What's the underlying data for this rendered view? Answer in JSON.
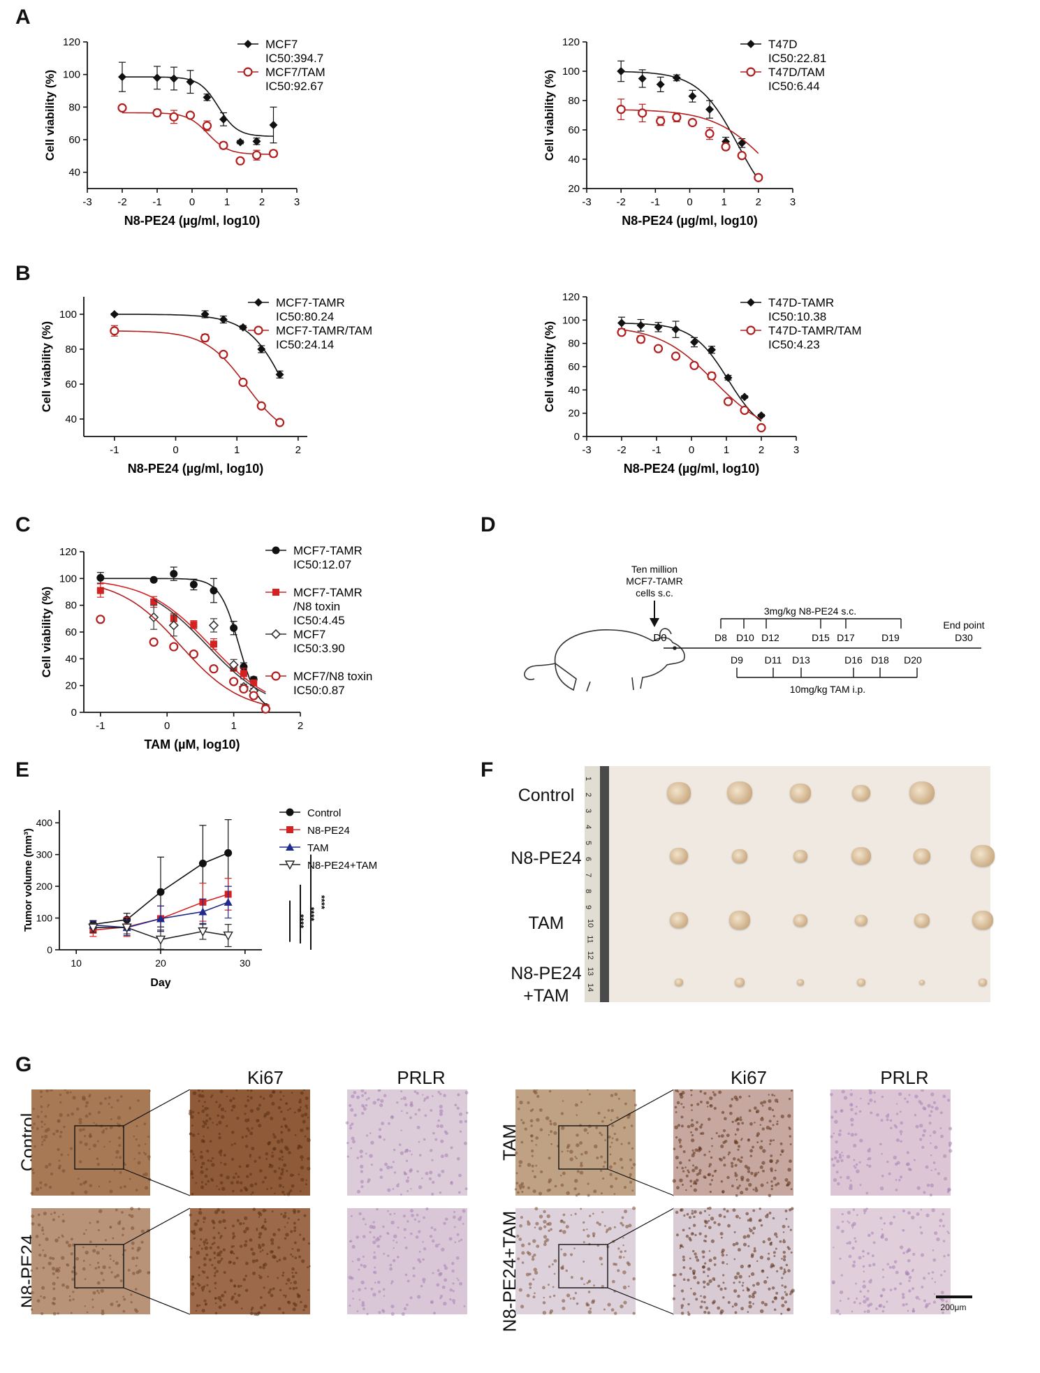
{
  "panels": {
    "A": "A",
    "B": "B",
    "C": "C",
    "D": "D",
    "E": "E",
    "F": "F",
    "G": "G"
  },
  "chart_data": [
    {
      "id": "A1",
      "type": "line",
      "xlabel": "N8-PE24 (µg/ml, log10)",
      "ylabel": "Cell viability (%)",
      "xlim": [
        -3,
        3
      ],
      "ylim": [
        30,
        120
      ],
      "xticks": [
        "-3",
        "-2",
        "-1",
        "0",
        "1",
        "2",
        "3"
      ],
      "yticks": [
        "40",
        "60",
        "80",
        "100",
        "120"
      ],
      "series": [
        {
          "name": "MCF7",
          "ic50": "IC50:394.7",
          "marker": "diamond",
          "color": "#111111",
          "x": [
            -2,
            -1,
            -0.52,
            -0.05,
            0.43,
            0.9,
            1.38,
            1.85,
            2.33
          ],
          "y": [
            98.5,
            98,
            97.5,
            95.5,
            86,
            72.5,
            58.5,
            59,
            69
          ],
          "err": [
            9,
            7,
            7,
            7,
            2,
            4,
            1,
            2,
            11
          ],
          "fit": {
            "top": 98.5,
            "bottom": 62,
            "x50": 0.75,
            "hill": 1.6
          }
        },
        {
          "name": "MCF7/TAM",
          "ic50": "IC50:92.67",
          "marker": "circle-open",
          "color": "#b01e1e",
          "x": [
            -2,
            -1,
            -0.52,
            -0.05,
            0.43,
            0.9,
            1.38,
            1.85,
            2.33
          ],
          "y": [
            79.5,
            76.5,
            74,
            75,
            68.5,
            56.5,
            47,
            50.5,
            51.5
          ],
          "err": [
            1,
            2,
            4,
            1,
            3,
            2,
            1,
            3,
            2
          ],
          "fit": {
            "top": 76.5,
            "bottom": 51,
            "x50": 0.45,
            "hill": 1.5
          }
        }
      ]
    },
    {
      "id": "A2",
      "type": "line",
      "xlabel": "N8-PE24 (µg/ml, log10)",
      "ylabel": "Cell viability (%)",
      "xlim": [
        -3,
        3
      ],
      "ylim": [
        20,
        120
      ],
      "xticks": [
        "-3",
        "-2",
        "-1",
        "0",
        "1",
        "2",
        "3"
      ],
      "yticks": [
        "20",
        "40",
        "60",
        "80",
        "100",
        "120"
      ],
      "series": [
        {
          "name": "T47D",
          "ic50": "IC50:22.81",
          "marker": "diamond",
          "color": "#111111",
          "x": [
            -2,
            -1.38,
            -0.85,
            -0.38,
            0.08,
            0.58,
            1.05,
            1.52,
            2
          ],
          "y": [
            100,
            95,
            91,
            95.5,
            83,
            74,
            52,
            51,
            27.5
          ],
          "err": [
            7,
            6,
            5,
            2,
            4,
            6,
            3,
            3,
            1
          ],
          "fit": {
            "top": 100,
            "bottom": 0,
            "x50": 1.4,
            "hill": 0.75
          }
        },
        {
          "name": "T47D/TAM",
          "ic50": "IC50:6.44",
          "marker": "circle-open",
          "color": "#b01e1e",
          "x": [
            -2,
            -1.38,
            -0.85,
            -0.38,
            0.08,
            0.58,
            1.05,
            1.52,
            2
          ],
          "y": [
            74,
            71.5,
            66,
            68.5,
            65,
            57.5,
            48.5,
            42.5,
            27.5
          ],
          "err": [
            7,
            6,
            3,
            3,
            2,
            4,
            2,
            1,
            1
          ],
          "fit": {
            "top": 74,
            "bottom": 0,
            "x50": 2.3,
            "hill": 0.55
          }
        }
      ]
    },
    {
      "id": "B1",
      "type": "line",
      "xlabel": "N8-PE24 (µg/ml, log10)",
      "ylabel": "Cell viability (%)",
      "xlim": [
        -1.5,
        2.15
      ],
      "ylim": [
        30,
        110
      ],
      "xticks": [
        "-1",
        "0",
        "1",
        "2"
      ],
      "ytickvals": [
        40,
        60,
        80,
        100
      ],
      "yticks": [
        "40",
        "60",
        "80",
        "100"
      ],
      "series": [
        {
          "name": "MCF7-TAMR",
          "ic50": "IC50:80.24",
          "marker": "diamond",
          "color": "#111111",
          "x": [
            -1,
            0.48,
            0.78,
            1.1,
            1.4,
            1.7
          ],
          "y": [
            100,
            100,
            97,
            92.5,
            80,
            65.5
          ],
          "err": [
            0.5,
            2,
            2,
            1,
            2,
            2
          ],
          "fit": {
            "top": 100,
            "bottom": 0,
            "x50": 1.9,
            "hill": 1.3
          }
        },
        {
          "name": "MCF7-TAMR/TAM",
          "ic50": "IC50:24.14",
          "marker": "circle-open",
          "color": "#b01e1e",
          "x": [
            -1,
            0.48,
            0.78,
            1.1,
            1.4,
            1.7
          ],
          "y": [
            90.5,
            86.5,
            77,
            61,
            47.5,
            38
          ],
          "err": [
            3,
            2,
            1,
            1,
            1,
            1
          ],
          "fit": {
            "top": 90.5,
            "bottom": 28,
            "x50": 1.15,
            "hill": 1.3
          }
        }
      ]
    },
    {
      "id": "B2",
      "type": "line",
      "xlabel": "N8-PE24 (µg/ml, log10)",
      "ylabel": "Cell viability (%)",
      "xlim": [
        -3,
        3
      ],
      "ylim": [
        0,
        120
      ],
      "xticks": [
        "-3",
        "-2",
        "-1",
        "0",
        "1",
        "2",
        "3"
      ],
      "yticks": [
        "0",
        "20",
        "40",
        "60",
        "80",
        "100",
        "120"
      ],
      "series": [
        {
          "name": "T47D-TAMR",
          "ic50": "IC50:10.38",
          "marker": "diamond",
          "color": "#111111",
          "x": [
            -2,
            -1.45,
            -0.95,
            -0.45,
            0.08,
            0.58,
            1.05,
            1.52,
            2
          ],
          "y": [
            97.5,
            95.5,
            94,
            92,
            81,
            74.5,
            50.5,
            34,
            18
          ],
          "err": [
            5,
            5,
            4,
            7,
            4,
            3,
            2,
            1,
            1
          ],
          "fit": {
            "top": 97.5,
            "bottom": 0,
            "x50": 1.05,
            "hill": 0.85
          }
        },
        {
          "name": "T47D-TAMR/TAM",
          "ic50": "IC50:4.23",
          "marker": "circle-open",
          "color": "#b01e1e",
          "x": [
            -2,
            -1.45,
            -0.95,
            -0.45,
            0.08,
            0.58,
            1.05,
            1.52,
            2
          ],
          "y": [
            89.5,
            83.5,
            75.5,
            69,
            61,
            52,
            30,
            22.5,
            7.5
          ],
          "err": [
            2,
            3,
            2,
            1,
            1,
            3,
            1,
            1,
            1
          ],
          "fit": {
            "top": 95,
            "bottom": 0,
            "x50": 0.65,
            "hill": 0.55
          }
        }
      ]
    },
    {
      "id": "C",
      "type": "line",
      "xlabel": "TAM (µM, log10)",
      "ylabel": "Cell viability (%)",
      "xlim": [
        -1.25,
        2
      ],
      "ylim": [
        0,
        120
      ],
      "xticks": [
        "-1",
        "0",
        "1",
        "2"
      ],
      "ytickvals": [
        0,
        20,
        40,
        60,
        80,
        100,
        120
      ],
      "yticks": [
        "0",
        "20",
        "40",
        "60",
        "80",
        "100",
        "120"
      ],
      "series": [
        {
          "name": "MCF7-TAMR",
          "ic50": "IC50:12.07",
          "marker": "circle-filled",
          "color": "#111111",
          "x": [
            -1,
            -0.2,
            0.1,
            0.4,
            0.7,
            1,
            1.15,
            1.3,
            1.48
          ],
          "y": [
            100.5,
            99,
            103.5,
            95.5,
            91,
            63,
            34,
            24.5,
            4
          ],
          "err": [
            4,
            1,
            5,
            4,
            9,
            5,
            3,
            2,
            1
          ],
          "fit": {
            "top": 100,
            "bottom": 0,
            "x50": 1.08,
            "hill": 3
          }
        },
        {
          "name": "MCF7-TAMR\n/N8 toxin",
          "ic50": "IC50:4.45",
          "marker": "square",
          "color": "#d42222",
          "x": [
            -1,
            -0.2,
            0.1,
            0.4,
            0.7,
            1,
            1.15,
            1.3,
            1.48
          ],
          "y": [
            91,
            82.5,
            70,
            65.5,
            51,
            33,
            29,
            22,
            3.5
          ],
          "err": [
            5,
            4,
            4,
            3,
            4,
            2,
            4,
            2,
            1
          ],
          "fit": {
            "top": 100,
            "bottom": 0,
            "x50": 0.65,
            "hill": 0.9
          }
        },
        {
          "name": "MCF7",
          "ic50": "IC50:3.90",
          "marker": "diamond-open",
          "color": "#333333",
          "x": [
            -0.2,
            0.1,
            0.7,
            1,
            1.15,
            1.3,
            1.48
          ],
          "y": [
            71,
            65,
            65,
            35.5,
            19,
            16,
            3
          ],
          "err": [
            9,
            8,
            5,
            4,
            2,
            2,
            1
          ],
          "fit": {
            "top": 100,
            "bottom": 0,
            "x50": 0.6,
            "hill": 0.9
          }
        },
        {
          "name": "MCF7/N8 toxin",
          "ic50": "IC50:0.87",
          "marker": "circle-open",
          "color": "#b01e1e",
          "x": [
            -1,
            -0.2,
            0.1,
            0.4,
            0.7,
            1,
            1.15,
            1.3,
            1.48
          ],
          "y": [
            69.5,
            52.5,
            49,
            43.5,
            32.5,
            23,
            17.5,
            12.5,
            2.5
          ],
          "err": [
            1,
            1,
            1,
            1,
            1,
            1,
            1,
            1,
            1
          ],
          "fit": {
            "top": 100,
            "bottom": 0,
            "x50": 0.2,
            "hill": 0.95
          }
        }
      ]
    },
    {
      "id": "E",
      "type": "line",
      "xlabel": "Day",
      "ylabel": "Tumor volume (mm³)",
      "xlim": [
        8,
        32
      ],
      "ylim": [
        0,
        440
      ],
      "xticks": [
        "10",
        "20",
        "30"
      ],
      "xtickvals": [
        10,
        20,
        30
      ],
      "ytickvals": [
        0,
        100,
        200,
        300,
        400
      ],
      "yticks": [
        "0",
        "100",
        "200",
        "300",
        "400"
      ],
      "significance": "****",
      "series": [
        {
          "name": "Control",
          "marker": "circle-filled",
          "color": "#111111",
          "x": [
            12,
            16,
            20,
            25,
            28
          ],
          "y": [
            80,
            95,
            182,
            272,
            305
          ],
          "err": [
            12,
            20,
            110,
            120,
            105
          ]
        },
        {
          "name": "N8-PE24",
          "marker": "square",
          "color": "#d42222",
          "x": [
            12,
            16,
            20,
            25,
            28
          ],
          "y": [
            62,
            72,
            98,
            150,
            175
          ],
          "err": [
            20,
            30,
            40,
            60,
            50
          ]
        },
        {
          "name": "TAM",
          "marker": "triangle",
          "color": "#1f2a8c",
          "x": [
            12,
            16,
            20,
            25,
            28
          ],
          "y": [
            78,
            70,
            98,
            120,
            150
          ],
          "err": [
            12,
            25,
            40,
            40,
            50
          ]
        },
        {
          "name": "N8-PE24+TAM",
          "marker": "triangle-down-open",
          "color": "#222222",
          "x": [
            12,
            16,
            20,
            25,
            28
          ],
          "y": [
            70,
            70,
            32,
            58,
            45
          ],
          "err": [
            15,
            20,
            30,
            25,
            35
          ]
        }
      ]
    }
  ],
  "schematic": {
    "cells_line1": "Ten million",
    "cells_line2": "MCF7-TAMR",
    "cells_line3": "cells s.c.",
    "d0": "D0",
    "n8_label": "3mg/kg N8-PE24 s.c.",
    "n8_days": [
      "D8",
      "D10",
      "D12",
      "D15",
      "D17",
      "D19"
    ],
    "tam_label": "10mg/kg TAM i.p.",
    "tam_days": [
      "D9",
      "D11",
      "D13",
      "D16",
      "D18",
      "D20"
    ],
    "end_label": "End point",
    "end_day": "D30"
  },
  "photo": {
    "rows": [
      "Control",
      "N8-PE24",
      "TAM",
      "N8-PE24\n+TAM"
    ],
    "ruler_numbers": [
      "1",
      "2",
      "3",
      "4",
      "5",
      "6",
      "7",
      "8",
      "9",
      "10",
      "11",
      "12",
      "13",
      "14"
    ]
  },
  "ihc": {
    "col_titles": [
      "Ki67",
      "PRLR",
      "Ki67",
      "PRLR"
    ],
    "left_rows": [
      "Control",
      "N8-PE24"
    ],
    "right_rows": [
      "TAM",
      "N8-PE24+TAM"
    ],
    "scale_bar": "200μm"
  }
}
